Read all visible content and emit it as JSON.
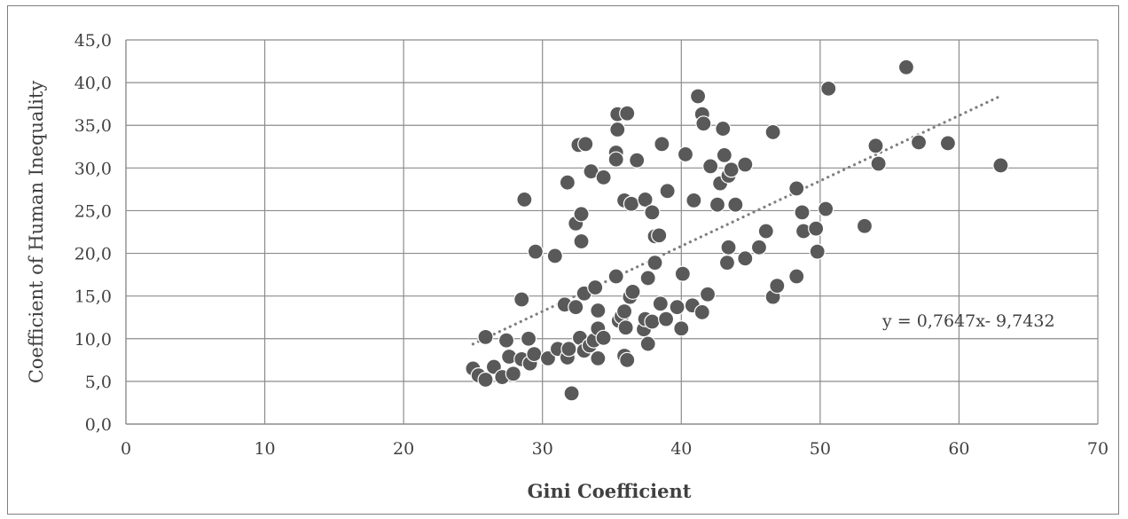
{
  "chart_data": {
    "type": "scatter",
    "title": "",
    "xlabel": "Gini Coefficient",
    "ylabel": "Coefficient of Human Inequality",
    "xlim": [
      0,
      70
    ],
    "ylim": [
      0,
      45
    ],
    "x_ticks": [
      "0",
      "10",
      "20",
      "30",
      "40",
      "50",
      "60",
      "70"
    ],
    "y_ticks": [
      "0,0",
      "5,0",
      "10,0",
      "15,0",
      "20,0",
      "25,0",
      "30,0",
      "35,0",
      "40,0",
      "45,0"
    ],
    "grid": true,
    "marker_color": "#595959",
    "trendline": {
      "type": "linear",
      "slope": 0.7647,
      "intercept": -9.7432,
      "x_range": [
        25,
        63
      ],
      "label": "y = 0,7647x- 9,7432",
      "style": "dotted",
      "color": "#7f7f7f"
    },
    "points": [
      [
        25.0,
        6.5
      ],
      [
        25.4,
        5.7
      ],
      [
        25.9,
        5.2
      ],
      [
        25.9,
        10.2
      ],
      [
        26.5,
        6.7
      ],
      [
        27.1,
        5.5
      ],
      [
        27.4,
        9.8
      ],
      [
        27.6,
        7.9
      ],
      [
        27.9,
        5.9
      ],
      [
        28.5,
        7.6
      ],
      [
        28.5,
        14.6
      ],
      [
        28.7,
        26.3
      ],
      [
        29.0,
        10.0
      ],
      [
        29.1,
        7.1
      ],
      [
        29.4,
        8.2
      ],
      [
        29.5,
        20.2
      ],
      [
        30.4,
        7.7
      ],
      [
        30.9,
        19.7
      ],
      [
        31.1,
        8.8
      ],
      [
        31.6,
        14.0
      ],
      [
        31.8,
        7.8
      ],
      [
        31.8,
        28.3
      ],
      [
        31.9,
        8.8
      ],
      [
        32.1,
        3.6
      ],
      [
        32.4,
        13.7
      ],
      [
        32.4,
        23.5
      ],
      [
        32.6,
        32.7
      ],
      [
        32.8,
        24.6
      ],
      [
        32.8,
        21.4
      ],
      [
        32.7,
        10.1
      ],
      [
        33.0,
        8.6
      ],
      [
        33.0,
        15.3
      ],
      [
        33.1,
        32.8
      ],
      [
        33.4,
        9.2
      ],
      [
        33.5,
        29.6
      ],
      [
        33.7,
        9.8
      ],
      [
        33.8,
        16.0
      ],
      [
        34.0,
        13.3
      ],
      [
        34.0,
        7.7
      ],
      [
        34.0,
        11.2
      ],
      [
        34.4,
        10.1
      ],
      [
        34.4,
        28.9
      ],
      [
        35.3,
        17.3
      ],
      [
        35.3,
        31.8
      ],
      [
        35.3,
        31.0
      ],
      [
        35.4,
        36.3
      ],
      [
        35.4,
        34.5
      ],
      [
        35.5,
        12.1
      ],
      [
        35.7,
        12.6
      ],
      [
        35.9,
        8.0
      ],
      [
        35.9,
        13.2
      ],
      [
        35.9,
        26.2
      ],
      [
        36.0,
        11.3
      ],
      [
        36.1,
        36.4
      ],
      [
        36.1,
        7.5
      ],
      [
        36.3,
        14.9
      ],
      [
        36.4,
        25.8
      ],
      [
        36.5,
        15.5
      ],
      [
        36.8,
        30.9
      ],
      [
        37.3,
        11.1
      ],
      [
        37.4,
        12.3
      ],
      [
        37.4,
        26.3
      ],
      [
        37.6,
        9.4
      ],
      [
        37.6,
        17.1
      ],
      [
        37.9,
        24.8
      ],
      [
        37.9,
        12.0
      ],
      [
        38.1,
        22.0
      ],
      [
        38.1,
        18.9
      ],
      [
        38.4,
        22.1
      ],
      [
        38.5,
        14.1
      ],
      [
        38.6,
        32.8
      ],
      [
        38.9,
        12.3
      ],
      [
        39.0,
        27.3
      ],
      [
        39.7,
        13.7
      ],
      [
        40.0,
        11.2
      ],
      [
        40.1,
        17.6
      ],
      [
        40.3,
        31.6
      ],
      [
        40.8,
        13.9
      ],
      [
        40.9,
        26.2
      ],
      [
        41.2,
        38.4
      ],
      [
        41.5,
        36.3
      ],
      [
        41.5,
        13.1
      ],
      [
        41.6,
        35.2
      ],
      [
        41.9,
        15.2
      ],
      [
        42.1,
        30.2
      ],
      [
        42.6,
        25.7
      ],
      [
        42.8,
        28.2
      ],
      [
        43.0,
        34.6
      ],
      [
        43.1,
        31.5
      ],
      [
        43.3,
        18.9
      ],
      [
        43.4,
        29.1
      ],
      [
        43.4,
        20.7
      ],
      [
        43.6,
        29.8
      ],
      [
        43.9,
        25.7
      ],
      [
        44.6,
        30.4
      ],
      [
        44.6,
        19.4
      ],
      [
        45.6,
        20.7
      ],
      [
        46.1,
        22.6
      ],
      [
        46.6,
        34.2
      ],
      [
        46.6,
        14.9
      ],
      [
        46.9,
        16.2
      ],
      [
        48.3,
        27.6
      ],
      [
        48.3,
        17.3
      ],
      [
        48.7,
        24.8
      ],
      [
        48.8,
        22.6
      ],
      [
        49.7,
        22.9
      ],
      [
        49.8,
        20.2
      ],
      [
        50.4,
        25.2
      ],
      [
        50.6,
        39.3
      ],
      [
        53.2,
        23.2
      ],
      [
        54.0,
        32.6
      ],
      [
        54.2,
        30.5
      ],
      [
        56.2,
        41.8
      ],
      [
        57.1,
        33.0
      ],
      [
        59.2,
        32.9
      ],
      [
        63.0,
        30.3
      ]
    ]
  }
}
